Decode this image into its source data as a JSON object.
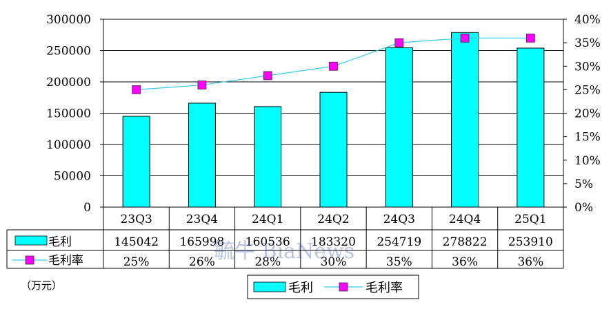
{
  "chart_data": {
    "type": "bar",
    "categories": [
      "23Q3",
      "23Q4",
      "24Q1",
      "24Q2",
      "24Q3",
      "24Q4",
      "25Q1"
    ],
    "series": [
      {
        "name": "毛利",
        "type": "bar",
        "axis": "left",
        "values": [
          145042,
          165998,
          160536,
          183320,
          254719,
          278822,
          253910
        ],
        "color": "#00ffff"
      },
      {
        "name": "毛利率",
        "type": "line",
        "axis": "right",
        "values": [
          25,
          26,
          28,
          30,
          35,
          36,
          36
        ],
        "labels": [
          "25%",
          "26%",
          "28%",
          "30%",
          "35%",
          "36%",
          "36%"
        ],
        "color": "#ff00ff",
        "line_color": "#33ccee"
      }
    ],
    "y_left": {
      "ylim": [
        0,
        300000
      ],
      "ticks": [
        "0",
        "50000",
        "100000",
        "150000",
        "200000",
        "250000",
        "300000"
      ]
    },
    "y_right": {
      "ylim": [
        0,
        40
      ],
      "ticks": [
        "0%",
        "5%",
        "10%",
        "15%",
        "20%",
        "25%",
        "30%",
        "35%",
        "40%"
      ]
    },
    "grid": true,
    "data_table": true,
    "legend_position": "bottom",
    "unit_label": "（万元）",
    "watermark": "毓牛  BiaNews"
  }
}
